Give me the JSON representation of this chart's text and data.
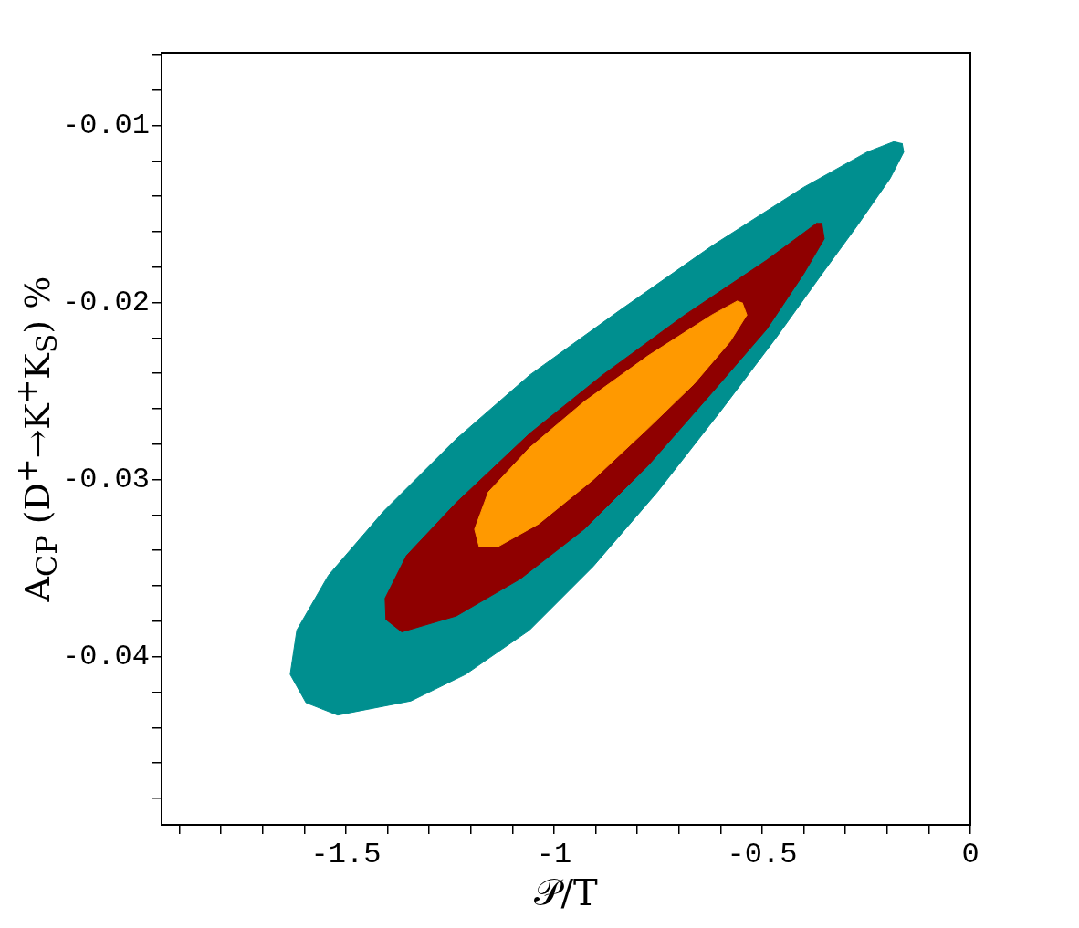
{
  "chart_data": {
    "type": "area",
    "xlabel": "𝒫/T",
    "ylabel": "A$_{CP}$ (D$^{+}$→K$^{+}$K$_{S}$) %",
    "xlim": [
      -1.943,
      0
    ],
    "ylim": [
      -0.0495,
      -0.0059
    ],
    "xticks": [
      {
        "value": -1.9,
        "label": null
      },
      {
        "value": -1.8,
        "label": null
      },
      {
        "value": -1.7,
        "label": null
      },
      {
        "value": -1.6,
        "label": null
      },
      -1.5,
      {
        "value": -1.4,
        "label": null
      },
      {
        "value": -1.3,
        "label": null
      },
      {
        "value": -1.2,
        "label": null
      },
      {
        "value": -1.1,
        "label": null
      },
      -1,
      {
        "value": -0.9,
        "label": null
      },
      {
        "value": -0.8,
        "label": null
      },
      {
        "value": -0.7,
        "label": null
      },
      {
        "value": -0.6,
        "label": null
      },
      -0.5,
      {
        "value": -0.4,
        "label": null
      },
      {
        "value": -0.3,
        "label": null
      },
      {
        "value": -0.2,
        "label": null
      },
      {
        "value": -0.1,
        "label": null
      },
      0
    ],
    "yticks": [
      {
        "value": -0.048,
        "label": null
      },
      {
        "value": -0.046,
        "label": null
      },
      {
        "value": -0.044,
        "label": null
      },
      {
        "value": -0.042,
        "label": null
      },
      -0.04,
      {
        "value": -0.038,
        "label": null
      },
      {
        "value": -0.036,
        "label": null
      },
      {
        "value": -0.034,
        "label": null
      },
      {
        "value": -0.032,
        "label": null
      },
      -0.03,
      {
        "value": -0.028,
        "label": null
      },
      {
        "value": -0.026,
        "label": null
      },
      {
        "value": -0.024,
        "label": null
      },
      {
        "value": -0.022,
        "label": null
      },
      -0.02,
      {
        "value": -0.018,
        "label": null
      },
      {
        "value": -0.016,
        "label": null
      },
      {
        "value": -0.014,
        "label": null
      },
      {
        "value": -0.012,
        "label": null
      },
      -0.01,
      {
        "value": -0.008,
        "label": null
      },
      {
        "value": -0.006,
        "label": null
      }
    ],
    "grid": false,
    "legend": false,
    "marker": "none",
    "series": [
      {
        "color": "#008f8f",
        "x": [
          -0.164,
          -0.16,
          -0.193,
          -0.27,
          -0.357,
          -0.467,
          -0.599,
          -0.752,
          -0.906,
          -1.059,
          -1.213,
          -1.344,
          -1.52,
          -1.596,
          -1.634,
          -1.618,
          -1.542,
          -1.41,
          -1.235,
          -1.059,
          -0.84,
          -0.621,
          -0.401,
          -0.248,
          -0.182
        ],
        "values": [
          -0.011,
          -0.0115,
          -0.013,
          -0.0156,
          -0.0184,
          -0.022,
          -0.0261,
          -0.0307,
          -0.0349,
          -0.0385,
          -0.041,
          -0.0425,
          -0.0433,
          -0.0426,
          -0.041,
          -0.0385,
          -0.0354,
          -0.0318,
          -0.0277,
          -0.0241,
          -0.0204,
          -0.0168,
          -0.0135,
          -0.0115,
          -0.0109
        ]
      },
      {
        "color": "#8f0000",
        "x": [
          -0.357,
          -0.351,
          -0.401,
          -0.489,
          -0.621,
          -0.774,
          -0.928,
          -1.081,
          -1.235,
          -1.366,
          -1.404,
          -1.406,
          -1.355,
          -1.235,
          -1.059,
          -0.884,
          -0.686,
          -0.489,
          -0.368
        ],
        "values": [
          -0.0155,
          -0.0164,
          -0.0184,
          -0.0215,
          -0.0251,
          -0.0292,
          -0.0328,
          -0.0356,
          -0.0377,
          -0.0386,
          -0.0379,
          -0.0367,
          -0.0343,
          -0.0313,
          -0.0274,
          -0.0241,
          -0.0207,
          -0.0176,
          -0.0155
        ]
      },
      {
        "color": "#ff9900",
        "x": [
          -0.548,
          -0.537,
          -0.577,
          -0.664,
          -0.774,
          -0.906,
          -1.037,
          -1.136,
          -1.18,
          -1.191,
          -1.158,
          -1.059,
          -0.928,
          -0.774,
          -0.621,
          -0.559
        ],
        "values": [
          -0.02,
          -0.0207,
          -0.0222,
          -0.0246,
          -0.0271,
          -0.03,
          -0.0325,
          -0.0338,
          -0.0338,
          -0.0328,
          -0.0307,
          -0.0282,
          -0.0256,
          -0.023,
          -0.0207,
          -0.0199
        ]
      }
    ]
  }
}
